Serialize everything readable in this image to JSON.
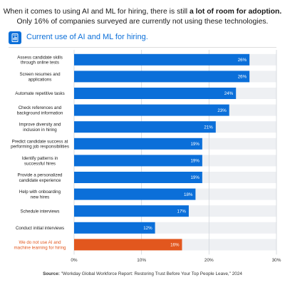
{
  "headline": {
    "line1_pre": "When it comes to using AI and ML for hiring, there is still ",
    "line1_bold": "a lot of room for adoption.",
    "line2": "Only 16% of companies surveyed are currently not using these technologies."
  },
  "section_title": "Current use of AI and ML for hiring.",
  "source": {
    "label": "Source:",
    "text": "\"Workday Global Workforce Report: Restoring Trust Before Your Top People Leave,\" 2024"
  },
  "icon": "document-chart-icon",
  "chart_data": {
    "type": "bar",
    "orientation": "horizontal",
    "title": "Current use of AI and ML for hiring.",
    "categories": [
      [
        "Assess candidate skills",
        "through online tests"
      ],
      [
        "Screen resumes and",
        "applications"
      ],
      [
        "Automate repetitive tasks"
      ],
      [
        "Check references and",
        "background information"
      ],
      [
        "Improve diversity and",
        "inclusion in hiring"
      ],
      [
        "Predict candidate success at",
        "performing job responsibilities"
      ],
      [
        "Identify patterns in",
        "successful hires"
      ],
      [
        "Provide a personalized",
        "candidate experience"
      ],
      [
        "Help with onboarding",
        "new hires"
      ],
      [
        "Schedule interviews"
      ],
      [
        "Conduct initial interviews"
      ],
      [
        "We do not use AI and",
        "machine learning for hiring"
      ]
    ],
    "values": [
      26,
      26,
      24,
      23,
      21,
      19,
      19,
      19,
      18,
      17,
      12,
      16
    ],
    "value_labels": [
      "26%",
      "26%",
      "24%",
      "23%",
      "21%",
      "19%",
      "19%",
      "19%",
      "18%",
      "17%",
      "12%",
      "16%"
    ],
    "highlight_index": 11,
    "xlim": [
      0,
      30
    ],
    "xticks": [
      0,
      10,
      20,
      30
    ],
    "xtick_labels": [
      "0%",
      "10%",
      "20%",
      "30%"
    ],
    "grid": true,
    "colors": {
      "bar": "#0b6fd9",
      "highlight": "#e2571e",
      "band": "#eef0f3",
      "grid": "#d0d4da"
    }
  }
}
